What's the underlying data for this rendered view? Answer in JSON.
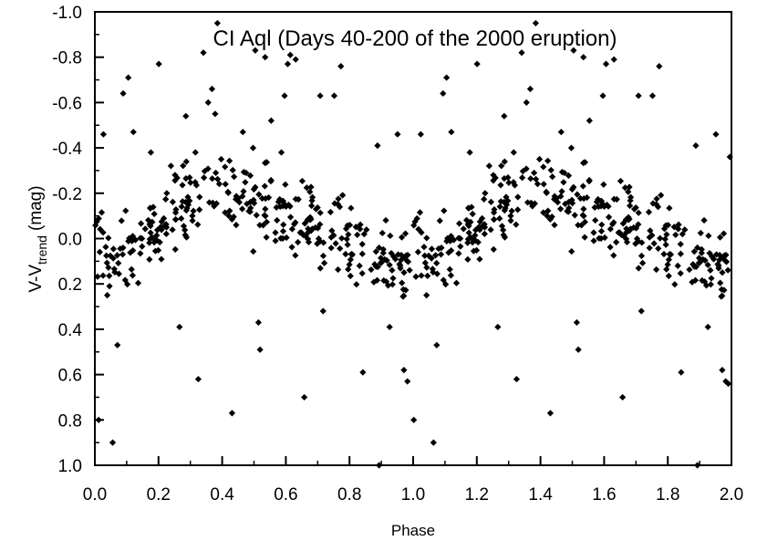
{
  "chart_data": {
    "type": "scatter",
    "title": "CI Aql (Days 40-200 of the 2000 eruption)",
    "xlabel": "Phase",
    "ylabel": "V-V",
    "ylabel_subscript": "trend",
    "ylabel_unit": "(mag)",
    "xlim": [
      0.0,
      2.0
    ],
    "ylim": [
      -1.0,
      1.0
    ],
    "y_inverted": true,
    "grid": false,
    "legend": "none",
    "marker": "diamond",
    "marker_color": "#000000",
    "x_ticks": [
      "0.0",
      "0.2",
      "0.4",
      "0.6",
      "0.8",
      "1.0",
      "1.2",
      "1.4",
      "1.6",
      "1.8",
      "2.0"
    ],
    "y_ticks": [
      "-1.0",
      "-0.8",
      "-0.6",
      "-0.4",
      "-0.2",
      "0.0",
      "0.2",
      "0.4",
      "0.6",
      "0.8",
      "1.0"
    ],
    "points": [
      [
        0.012,
        0.8
      ],
      [
        0.027,
        -0.46
      ],
      [
        0.039,
        0.25
      ],
      [
        0.046,
        0.21
      ],
      [
        0.056,
        0.9
      ],
      [
        0.071,
        0.47
      ],
      [
        0.089,
        -0.64
      ],
      [
        0.105,
        -0.71
      ],
      [
        0.121,
        -0.47
      ],
      [
        0.148,
        0.0
      ],
      [
        0.176,
        -0.38
      ],
      [
        0.201,
        -0.77
      ],
      [
        0.226,
        -0.2
      ],
      [
        0.252,
        -0.28
      ],
      [
        0.266,
        0.39
      ],
      [
        0.286,
        -0.54
      ],
      [
        0.316,
        -0.38
      ],
      [
        0.325,
        0.62
      ],
      [
        0.341,
        -0.82
      ],
      [
        0.356,
        -0.6
      ],
      [
        0.368,
        -0.66
      ],
      [
        0.378,
        -0.55
      ],
      [
        0.385,
        -0.95
      ],
      [
        0.397,
        -0.35
      ],
      [
        0.431,
        0.77
      ],
      [
        0.465,
        -0.47
      ],
      [
        0.497,
        -0.4
      ],
      [
        0.504,
        -0.83
      ],
      [
        0.514,
        0.37
      ],
      [
        0.519,
        0.49
      ],
      [
        0.535,
        -0.8
      ],
      [
        0.554,
        -0.52
      ],
      [
        0.586,
        -0.38
      ],
      [
        0.596,
        -0.63
      ],
      [
        0.606,
        -0.77
      ],
      [
        0.614,
        -0.81
      ],
      [
        0.631,
        -0.79
      ],
      [
        0.658,
        0.7
      ],
      [
        0.708,
        -0.63
      ],
      [
        0.717,
        0.32
      ],
      [
        0.752,
        -0.63
      ],
      [
        0.773,
        -0.76
      ],
      [
        0.842,
        0.59
      ],
      [
        0.888,
        -0.41
      ],
      [
        0.893,
        1.0
      ],
      [
        0.926,
        0.39
      ],
      [
        0.951,
        -0.46
      ],
      [
        0.971,
        0.58
      ],
      [
        0.982,
        0.63
      ],
      [
        1.002,
        0.8
      ],
      [
        1.024,
        -0.46
      ],
      [
        1.042,
        0.25
      ],
      [
        1.064,
        0.9
      ],
      [
        1.074,
        0.47
      ],
      [
        1.094,
        -0.64
      ],
      [
        1.105,
        -0.71
      ],
      [
        1.12,
        -0.47
      ],
      [
        1.148,
        0.0
      ],
      [
        1.178,
        -0.38
      ],
      [
        1.201,
        -0.77
      ],
      [
        1.226,
        -0.2
      ],
      [
        1.252,
        -0.28
      ],
      [
        1.266,
        0.39
      ],
      [
        1.286,
        -0.54
      ],
      [
        1.316,
        -0.38
      ],
      [
        1.325,
        0.62
      ],
      [
        1.341,
        -0.82
      ],
      [
        1.356,
        -0.6
      ],
      [
        1.368,
        -0.66
      ],
      [
        1.385,
        -0.95
      ],
      [
        1.397,
        -0.35
      ],
      [
        1.431,
        0.77
      ],
      [
        1.465,
        -0.47
      ],
      [
        1.497,
        -0.4
      ],
      [
        1.504,
        -0.83
      ],
      [
        1.514,
        0.37
      ],
      [
        1.519,
        0.49
      ],
      [
        1.535,
        -0.8
      ],
      [
        1.554,
        -0.52
      ],
      [
        1.596,
        -0.63
      ],
      [
        1.606,
        -0.77
      ],
      [
        1.631,
        -0.79
      ],
      [
        1.658,
        0.7
      ],
      [
        1.708,
        -0.63
      ],
      [
        1.717,
        0.32
      ],
      [
        1.752,
        -0.63
      ],
      [
        1.773,
        -0.76
      ],
      [
        1.842,
        0.59
      ],
      [
        1.888,
        -0.41
      ],
      [
        1.893,
        1.0
      ],
      [
        1.926,
        0.39
      ],
      [
        1.951,
        -0.46
      ],
      [
        1.971,
        0.58
      ],
      [
        1.982,
        0.63
      ],
      [
        1.99,
        0.64
      ],
      [
        1.995,
        -0.36
      ]
    ],
    "band": {
      "description_note_omitted": true,
      "phase_profile": [
        [
          0.0,
          0.02
        ],
        [
          0.05,
          0.1
        ],
        [
          0.1,
          0.06
        ],
        [
          0.15,
          0.02
        ],
        [
          0.2,
          -0.06
        ],
        [
          0.25,
          -0.14
        ],
        [
          0.3,
          -0.18
        ],
        [
          0.35,
          -0.22
        ],
        [
          0.4,
          -0.2
        ],
        [
          0.45,
          -0.17
        ],
        [
          0.5,
          -0.14
        ],
        [
          0.55,
          -0.12
        ],
        [
          0.6,
          -0.11
        ],
        [
          0.65,
          -0.09
        ],
        [
          0.7,
          -0.06
        ],
        [
          0.75,
          -0.02
        ],
        [
          0.8,
          0.03
        ],
        [
          0.85,
          0.07
        ],
        [
          0.9,
          0.1
        ],
        [
          0.95,
          0.12
        ],
        [
          1.0,
          0.06
        ]
      ],
      "spread": 0.13,
      "count_per_cycle": 330
    }
  }
}
